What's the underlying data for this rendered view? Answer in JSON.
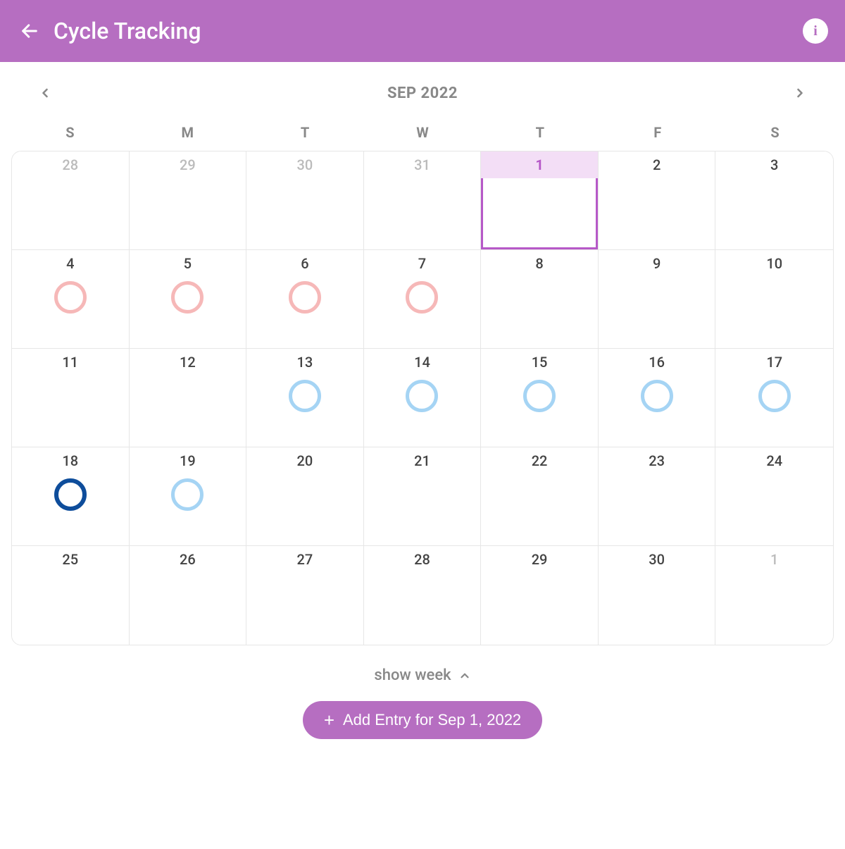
{
  "header": {
    "title": "Cycle Tracking",
    "accent_color": "#b66ec1"
  },
  "month_nav": {
    "label": "SEP 2022"
  },
  "weekdays": [
    "S",
    "M",
    "T",
    "W",
    "T",
    "F",
    "S"
  ],
  "circle_styles": {
    "pink": {
      "color": "#f6b8b8",
      "width": 5
    },
    "lightblue": {
      "color": "#a5d4f4",
      "width": 5
    },
    "darkblue": {
      "color": "#0e4d9b",
      "width": 6
    }
  },
  "days": [
    {
      "n": "28",
      "other": true
    },
    {
      "n": "29",
      "other": true
    },
    {
      "n": "30",
      "other": true
    },
    {
      "n": "31",
      "other": true
    },
    {
      "n": "1",
      "selected": true
    },
    {
      "n": "2"
    },
    {
      "n": "3"
    },
    {
      "n": "4",
      "circle": "pink"
    },
    {
      "n": "5",
      "circle": "pink"
    },
    {
      "n": "6",
      "circle": "pink"
    },
    {
      "n": "7",
      "circle": "pink"
    },
    {
      "n": "8"
    },
    {
      "n": "9"
    },
    {
      "n": "10"
    },
    {
      "n": "11"
    },
    {
      "n": "12"
    },
    {
      "n": "13",
      "circle": "lightblue"
    },
    {
      "n": "14",
      "circle": "lightblue"
    },
    {
      "n": "15",
      "circle": "lightblue"
    },
    {
      "n": "16",
      "circle": "lightblue"
    },
    {
      "n": "17",
      "circle": "lightblue"
    },
    {
      "n": "18",
      "circle": "darkblue"
    },
    {
      "n": "19",
      "circle": "lightblue"
    },
    {
      "n": "20"
    },
    {
      "n": "21"
    },
    {
      "n": "22"
    },
    {
      "n": "23"
    },
    {
      "n": "24"
    },
    {
      "n": "25"
    },
    {
      "n": "26"
    },
    {
      "n": "27"
    },
    {
      "n": "28"
    },
    {
      "n": "29"
    },
    {
      "n": "30"
    },
    {
      "n": "1",
      "other": true
    }
  ],
  "show_week_label": "show week",
  "add_entry_label": "Add Entry for Sep 1, 2022"
}
